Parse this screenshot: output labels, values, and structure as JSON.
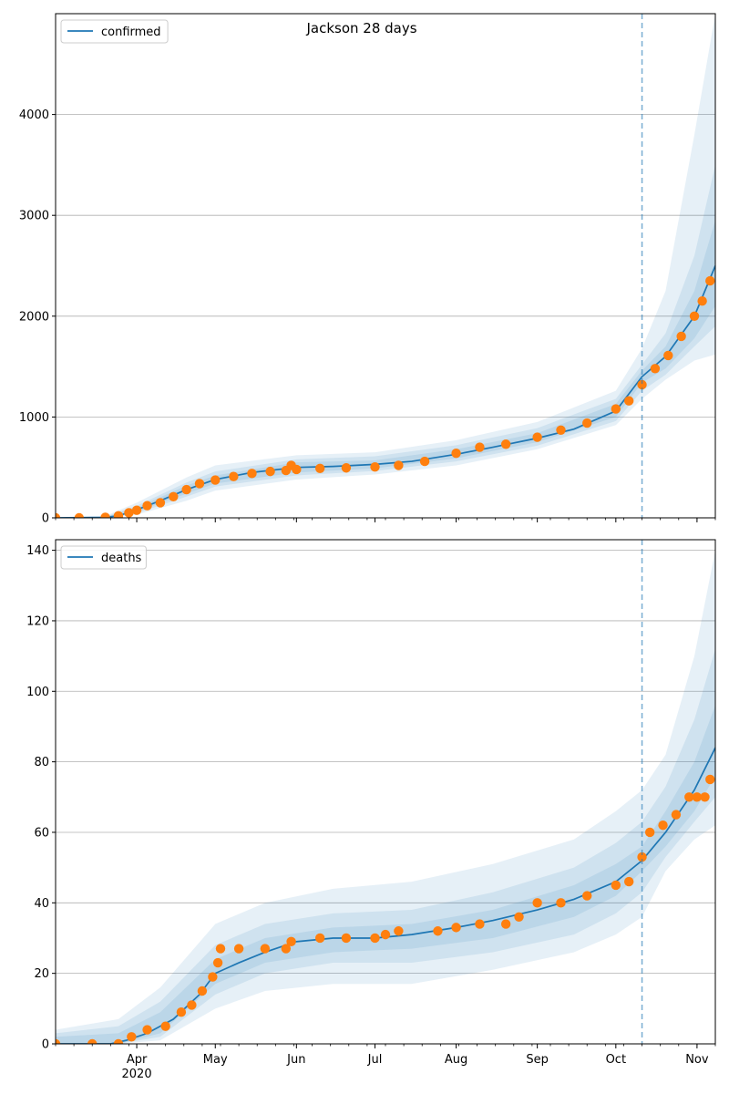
{
  "figure": {
    "title": "Jackson 28 days"
  },
  "chart_data": [
    {
      "type": "line",
      "panel": "top",
      "x_axis": {
        "type": "date",
        "range": [
          "2020-03-01",
          "2020-11-08"
        ],
        "tick_labels": [
          "Apr",
          "May",
          "Jun",
          "Jul",
          "Aug",
          "Sep",
          "Oct",
          "Nov"
        ],
        "tick_dates": [
          "2020-04-01",
          "2020-05-01",
          "2020-06-01",
          "2020-07-01",
          "2020-08-01",
          "2020-09-01",
          "2020-10-01",
          "2020-11-01"
        ],
        "year_label": "2020",
        "show_labels": false
      },
      "y_axis": {
        "range": [
          0,
          5000
        ],
        "ticks": [
          0,
          1000,
          2000,
          3000,
          4000
        ]
      },
      "grid": "y",
      "legend": {
        "position": "top-left",
        "entries": [
          "confirmed"
        ]
      },
      "vline_date": "2020-10-11",
      "series": [
        {
          "name": "confirmed",
          "kind": "model-line",
          "color": "#1f77b4",
          "x": [
            "2020-03-01",
            "2020-03-20",
            "2020-03-25",
            "2020-04-01",
            "2020-04-10",
            "2020-04-20",
            "2020-05-01",
            "2020-05-15",
            "2020-06-01",
            "2020-06-15",
            "2020-07-01",
            "2020-07-15",
            "2020-08-01",
            "2020-08-15",
            "2020-09-01",
            "2020-09-15",
            "2020-10-01",
            "2020-10-11",
            "2020-10-20",
            "2020-10-31",
            "2020-11-08"
          ],
          "y": [
            0,
            5,
            20,
            80,
            170,
            280,
            380,
            450,
            500,
            510,
            530,
            560,
            630,
            700,
            790,
            880,
            1060,
            1400,
            1600,
            2000,
            2500
          ]
        },
        {
          "name": "confirmed-observed",
          "kind": "observed-points",
          "color": "#ff7f0e",
          "x": [
            "2020-03-01",
            "2020-03-10",
            "2020-03-20",
            "2020-03-25",
            "2020-03-29",
            "2020-04-01",
            "2020-04-05",
            "2020-04-10",
            "2020-04-15",
            "2020-04-20",
            "2020-04-25",
            "2020-05-01",
            "2020-05-08",
            "2020-05-15",
            "2020-05-22",
            "2020-05-28",
            "2020-05-30",
            "2020-06-01",
            "2020-06-10",
            "2020-06-20",
            "2020-07-01",
            "2020-07-10",
            "2020-07-20",
            "2020-08-01",
            "2020-08-10",
            "2020-08-20",
            "2020-09-01",
            "2020-09-10",
            "2020-09-20",
            "2020-10-01",
            "2020-10-06",
            "2020-10-11",
            "2020-10-16",
            "2020-10-21",
            "2020-10-26",
            "2020-10-31",
            "2020-11-03",
            "2020-11-06"
          ],
          "y": [
            0,
            0,
            5,
            20,
            50,
            75,
            120,
            150,
            210,
            280,
            340,
            375,
            410,
            440,
            460,
            470,
            520,
            480,
            490,
            495,
            505,
            520,
            560,
            640,
            700,
            730,
            800,
            870,
            940,
            1080,
            1160,
            1320,
            1480,
            1610,
            1800,
            2000,
            2150,
            2350
          ]
        },
        {
          "name": "confirmed-band-inner",
          "kind": "band",
          "x": [
            "2020-03-01",
            "2020-03-20",
            "2020-04-01",
            "2020-04-20",
            "2020-05-01",
            "2020-06-01",
            "2020-07-01",
            "2020-08-01",
            "2020-09-01",
            "2020-10-01",
            "2020-10-11",
            "2020-10-20",
            "2020-10-31",
            "2020-11-08"
          ],
          "lower": [
            0,
            3,
            60,
            240,
            340,
            450,
            490,
            590,
            750,
            1000,
            1340,
            1480,
            1780,
            2100
          ],
          "upper": [
            0,
            8,
            100,
            320,
            420,
            550,
            570,
            680,
            840,
            1130,
            1460,
            1700,
            2250,
            2950
          ]
        },
        {
          "name": "confirmed-band-mid",
          "kind": "band",
          "x": [
            "2020-03-01",
            "2020-03-20",
            "2020-04-01",
            "2020-04-20",
            "2020-05-01",
            "2020-06-01",
            "2020-07-01",
            "2020-08-01",
            "2020-09-01",
            "2020-10-01",
            "2020-10-11",
            "2020-10-20",
            "2020-10-31",
            "2020-11-08"
          ],
          "lower": [
            0,
            2,
            45,
            210,
            310,
            420,
            465,
            560,
            715,
            960,
            1260,
            1420,
            1700,
            1900
          ],
          "upper": [
            0,
            12,
            120,
            350,
            460,
            580,
            610,
            720,
            890,
            1180,
            1520,
            1830,
            2600,
            3500
          ]
        },
        {
          "name": "confirmed-band-outer",
          "kind": "band",
          "x": [
            "2020-03-01",
            "2020-03-20",
            "2020-04-01",
            "2020-04-20",
            "2020-05-01",
            "2020-06-01",
            "2020-07-01",
            "2020-08-01",
            "2020-09-01",
            "2020-10-01",
            "2020-10-11",
            "2020-10-20",
            "2020-10-31",
            "2020-11-08"
          ],
          "lower": [
            0,
            0,
            30,
            170,
            270,
            380,
            430,
            520,
            680,
            920,
            1180,
            1370,
            1560,
            1620
          ],
          "upper": [
            0,
            18,
            150,
            400,
            520,
            620,
            650,
            770,
            950,
            1260,
            1680,
            2250,
            3800,
            5000
          ]
        }
      ]
    },
    {
      "type": "line",
      "panel": "bottom",
      "x_axis": {
        "type": "date",
        "range": [
          "2020-03-01",
          "2020-11-08"
        ],
        "tick_labels": [
          "Apr",
          "May",
          "Jun",
          "Jul",
          "Aug",
          "Sep",
          "Oct",
          "Nov"
        ],
        "tick_dates": [
          "2020-04-01",
          "2020-05-01",
          "2020-06-01",
          "2020-07-01",
          "2020-08-01",
          "2020-09-01",
          "2020-10-01",
          "2020-11-01"
        ],
        "year_label": "2020",
        "show_labels": true
      },
      "y_axis": {
        "range": [
          0,
          143
        ],
        "ticks": [
          0,
          20,
          40,
          60,
          80,
          100,
          120,
          140
        ]
      },
      "grid": "y",
      "legend": {
        "position": "top-left",
        "entries": [
          "deaths"
        ]
      },
      "vline_date": "2020-10-11",
      "series": [
        {
          "name": "deaths",
          "kind": "model-line",
          "color": "#1f77b4",
          "x": [
            "2020-03-01",
            "2020-03-22",
            "2020-03-28",
            "2020-04-05",
            "2020-04-15",
            "2020-04-25",
            "2020-05-01",
            "2020-05-10",
            "2020-05-20",
            "2020-06-01",
            "2020-06-15",
            "2020-07-01",
            "2020-07-15",
            "2020-08-01",
            "2020-08-15",
            "2020-09-01",
            "2020-09-15",
            "2020-10-01",
            "2020-10-11",
            "2020-10-20",
            "2020-10-31",
            "2020-11-08"
          ],
          "y": [
            0,
            0,
            1,
            3,
            7,
            14,
            20,
            23,
            26,
            29,
            30,
            30,
            31,
            33,
            35,
            38,
            41,
            46,
            52,
            60,
            72,
            84
          ]
        },
        {
          "name": "deaths-observed",
          "kind": "observed-points",
          "color": "#ff7f0e",
          "x": [
            "2020-03-01",
            "2020-03-15",
            "2020-03-25",
            "2020-03-30",
            "2020-04-05",
            "2020-04-12",
            "2020-04-18",
            "2020-04-22",
            "2020-04-26",
            "2020-04-30",
            "2020-05-02",
            "2020-05-03",
            "2020-05-10",
            "2020-05-20",
            "2020-05-28",
            "2020-05-30",
            "2020-06-10",
            "2020-06-20",
            "2020-07-01",
            "2020-07-05",
            "2020-07-10",
            "2020-07-25",
            "2020-08-01",
            "2020-08-10",
            "2020-08-20",
            "2020-08-25",
            "2020-09-01",
            "2020-09-10",
            "2020-09-20",
            "2020-10-01",
            "2020-10-06",
            "2020-10-11",
            "2020-10-14",
            "2020-10-19",
            "2020-10-24",
            "2020-10-29",
            "2020-11-01",
            "2020-11-04",
            "2020-11-06"
          ],
          "y": [
            0,
            0,
            0,
            2,
            4,
            5,
            9,
            11,
            15,
            19,
            23,
            27,
            27,
            27,
            27,
            29,
            30,
            30,
            30,
            31,
            32,
            32,
            33,
            34,
            34,
            36,
            40,
            40,
            42,
            45,
            46,
            53,
            60,
            62,
            65,
            70,
            70,
            70,
            75
          ]
        },
        {
          "name": "deaths-band-inner",
          "kind": "band",
          "x": [
            "2020-03-01",
            "2020-03-25",
            "2020-04-10",
            "2020-05-01",
            "2020-05-20",
            "2020-06-15",
            "2020-07-15",
            "2020-08-15",
            "2020-09-15",
            "2020-10-01",
            "2020-10-11",
            "2020-10-20",
            "2020-10-31",
            "2020-11-08"
          ],
          "lower": [
            0,
            0,
            3,
            17,
            23,
            26,
            27,
            30,
            36,
            42,
            49,
            56,
            66,
            76
          ],
          "upper": [
            2,
            3,
            9,
            24,
            30,
            33,
            34,
            38,
            45,
            51,
            56,
            66,
            80,
            96
          ]
        },
        {
          "name": "deaths-band-mid",
          "kind": "band",
          "x": [
            "2020-03-01",
            "2020-03-25",
            "2020-04-10",
            "2020-05-01",
            "2020-05-20",
            "2020-06-15",
            "2020-07-15",
            "2020-08-15",
            "2020-09-15",
            "2020-10-01",
            "2020-10-11",
            "2020-10-20",
            "2020-10-31",
            "2020-11-08"
          ],
          "lower": [
            0,
            0,
            2,
            14,
            20,
            23,
            23,
            26,
            31,
            37,
            43,
            53,
            63,
            70
          ],
          "upper": [
            3,
            5,
            12,
            28,
            34,
            37,
            38,
            43,
            50,
            57,
            63,
            73,
            92,
            112
          ]
        },
        {
          "name": "deaths-band-outer",
          "kind": "band",
          "x": [
            "2020-03-01",
            "2020-03-25",
            "2020-04-10",
            "2020-05-01",
            "2020-05-20",
            "2020-06-15",
            "2020-07-15",
            "2020-08-15",
            "2020-09-15",
            "2020-10-01",
            "2020-10-11",
            "2020-10-20",
            "2020-10-31",
            "2020-11-08"
          ],
          "lower": [
            0,
            0,
            1,
            10,
            15,
            17,
            17,
            21,
            26,
            31,
            36,
            49,
            58,
            62
          ],
          "upper": [
            4,
            7,
            16,
            34,
            40,
            44,
            46,
            51,
            58,
            66,
            72,
            82,
            110,
            140
          ]
        }
      ]
    }
  ]
}
